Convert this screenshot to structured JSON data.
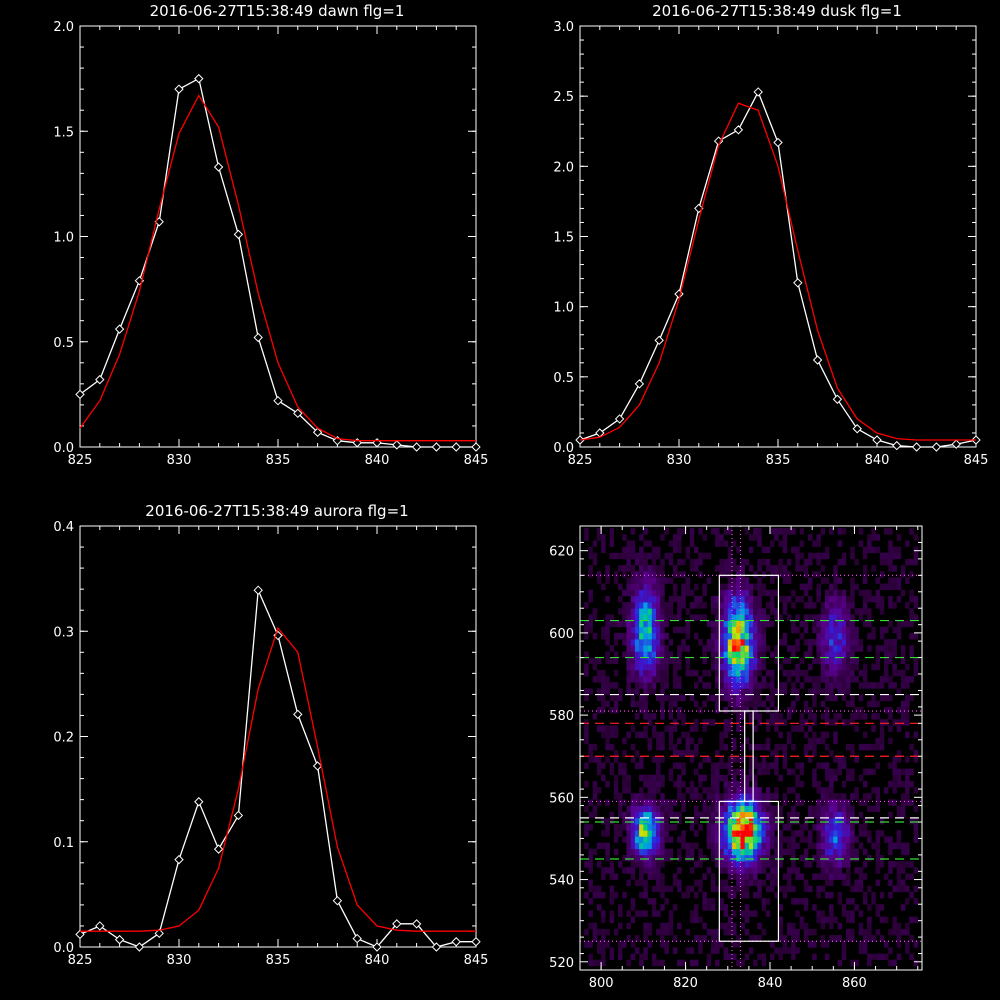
{
  "chart_data": [
    {
      "type": "line",
      "title": "2016-06-27T15:38:49 dawn flg=1",
      "xlim": [
        825,
        845
      ],
      "ylim": [
        0,
        2.0
      ],
      "xticks": [
        "825",
        "830",
        "835",
        "840",
        "845"
      ],
      "yticks": [
        "0.0",
        "0.5",
        "1.0",
        "1.5",
        "2.0"
      ],
      "x": [
        825,
        826,
        827,
        828,
        829,
        830,
        831,
        832,
        833,
        834,
        835,
        836,
        837,
        838,
        839,
        840,
        841,
        842,
        843,
        844,
        845
      ],
      "series": [
        {
          "color": "#ffffff",
          "marker": "diamond",
          "values": [
            0.25,
            0.32,
            0.56,
            0.79,
            1.07,
            1.7,
            1.75,
            1.33,
            1.01,
            0.52,
            0.22,
            0.16,
            0.07,
            0.03,
            0.02,
            0.02,
            0.01,
            0.0,
            0.0,
            0.0,
            0.0
          ]
        },
        {
          "color": "#ff0000",
          "values": [
            0.09,
            0.22,
            0.44,
            0.74,
            1.13,
            1.49,
            1.67,
            1.52,
            1.15,
            0.73,
            0.4,
            0.19,
            0.09,
            0.04,
            0.03,
            0.03,
            0.03,
            0.03,
            0.03,
            0.03,
            0.03
          ]
        }
      ]
    },
    {
      "type": "line",
      "title": "2016-06-27T15:38:49 dusk flg=1",
      "xlim": [
        825,
        845
      ],
      "ylim": [
        0,
        3.0
      ],
      "xticks": [
        "825",
        "830",
        "835",
        "840",
        "845"
      ],
      "yticks": [
        "0.0",
        "0.5",
        "1.0",
        "1.5",
        "2.0",
        "2.5",
        "3.0"
      ],
      "x": [
        825,
        826,
        827,
        828,
        829,
        830,
        831,
        832,
        833,
        834,
        835,
        836,
        837,
        838,
        839,
        840,
        841,
        842,
        843,
        844,
        845
      ],
      "series": [
        {
          "color": "#ffffff",
          "marker": "diamond",
          "values": [
            0.05,
            0.1,
            0.2,
            0.45,
            0.76,
            1.09,
            1.7,
            2.18,
            2.26,
            2.53,
            2.17,
            1.17,
            0.62,
            0.34,
            0.13,
            0.05,
            0.01,
            0.0,
            0.0,
            0.02,
            0.05
          ]
        },
        {
          "color": "#ff0000",
          "values": [
            0.05,
            0.07,
            0.14,
            0.3,
            0.6,
            1.05,
            1.62,
            2.15,
            2.45,
            2.4,
            2.0,
            1.4,
            0.83,
            0.42,
            0.2,
            0.1,
            0.06,
            0.05,
            0.05,
            0.05,
            0.05
          ]
        }
      ]
    },
    {
      "type": "line",
      "title": "2016-06-27T15:38:49 aurora flg=1",
      "xlim": [
        825,
        845
      ],
      "ylim": [
        0,
        0.4
      ],
      "xticks": [
        "825",
        "830",
        "835",
        "840",
        "845"
      ],
      "yticks": [
        "0.0",
        "0.1",
        "0.2",
        "0.3",
        "0.4"
      ],
      "x": [
        825,
        826,
        827,
        828,
        829,
        830,
        831,
        832,
        833,
        834,
        835,
        836,
        837,
        838,
        839,
        840,
        841,
        842,
        843,
        844,
        845
      ],
      "series": [
        {
          "color": "#ffffff",
          "marker": "diamond",
          "values": [
            0.012,
            0.02,
            0.007,
            0.0,
            0.013,
            0.083,
            0.138,
            0.093,
            0.125,
            0.339,
            0.296,
            0.221,
            0.172,
            0.044,
            0.008,
            0.0,
            0.022,
            0.022,
            0.0,
            0.005,
            0.005
          ]
        },
        {
          "color": "#ff0000",
          "values": [
            0.015,
            0.015,
            0.015,
            0.015,
            0.016,
            0.02,
            0.035,
            0.075,
            0.15,
            0.245,
            0.303,
            0.28,
            0.19,
            0.095,
            0.04,
            0.02,
            0.016,
            0.015,
            0.015,
            0.015,
            0.015
          ]
        }
      ]
    },
    {
      "type": "heatmap",
      "title": "",
      "xlim": [
        795,
        876
      ],
      "ylim": [
        518,
        626
      ],
      "xticks": [
        "800",
        "820",
        "840",
        "860"
      ],
      "yticks": [
        "520",
        "540",
        "560",
        "580",
        "600",
        "620"
      ],
      "blobs": [
        {
          "x": 810,
          "y": 600,
          "sx": 2.2,
          "sy": 7,
          "peak": 0.55
        },
        {
          "x": 810,
          "y": 551,
          "sx": 2.2,
          "sy": 4,
          "peak": 0.65
        },
        {
          "x": 832,
          "y": 597,
          "sx": 2.5,
          "sy": 7,
          "peak": 0.8
        },
        {
          "x": 833,
          "y": 551,
          "sx": 3,
          "sy": 5,
          "peak": 1.0
        },
        {
          "x": 855,
          "y": 598,
          "sx": 2.2,
          "sy": 6,
          "peak": 0.3
        },
        {
          "x": 855,
          "y": 550,
          "sx": 2.2,
          "sy": 5,
          "peak": 0.35
        }
      ],
      "boxes": [
        {
          "x0": 828,
          "x1": 842,
          "y0": 581,
          "y1": 614
        },
        {
          "x0": 828,
          "x1": 842,
          "y0": 525,
          "y1": 559
        },
        {
          "x0": 834,
          "x1": 836,
          "y0": 559,
          "y1": 581
        }
      ],
      "hlines": [
        {
          "y": 614,
          "color": "#ff44ff",
          "style": "dot"
        },
        {
          "y": 603,
          "color": "#33dd33",
          "style": "dash"
        },
        {
          "y": 594,
          "color": "#33dd33",
          "style": "dash"
        },
        {
          "y": 585,
          "color": "#ffffff",
          "style": "dash"
        },
        {
          "y": 581,
          "color": "#ff44ff",
          "style": "dot"
        },
        {
          "y": 578,
          "color": "#ff2222",
          "style": "dash"
        },
        {
          "y": 570,
          "color": "#ff2222",
          "style": "dash"
        },
        {
          "y": 559,
          "color": "#ff44ff",
          "style": "dot"
        },
        {
          "y": 555,
          "color": "#ffffff",
          "style": "dash"
        },
        {
          "y": 554,
          "color": "#33dd33",
          "style": "dash"
        },
        {
          "y": 545,
          "color": "#33dd33",
          "style": "dash"
        },
        {
          "y": 525,
          "color": "#ff44ff",
          "style": "dot"
        }
      ],
      "vlines": [
        {
          "x": 831,
          "color": "#ff44ff",
          "style": "dot"
        },
        {
          "x": 833,
          "color": "#ff44ff",
          "style": "dot"
        }
      ]
    }
  ]
}
